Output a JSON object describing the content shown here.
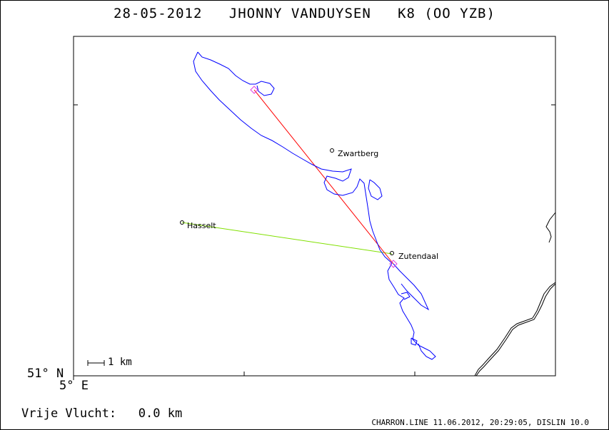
{
  "header": {
    "date": "28-05-2012",
    "pilot": "JHONNY VANDUYSEN",
    "glider": "K8 (OO YZB)"
  },
  "map": {
    "lat_label": "51° N",
    "lon_label": "5° E",
    "scale_label": "1 km",
    "places": [
      {
        "name": "Zwartberg"
      },
      {
        "name": "Hasselt"
      },
      {
        "name": "Zutendaal"
      }
    ],
    "colors": {
      "track": "#0000ff",
      "declared_line": "#ff0000",
      "free_flight_line": "#80e000",
      "turnpoint_marker": "#e040e0",
      "border": "#000000"
    }
  },
  "footer": {
    "distance_label": "Vrije Vlucht:",
    "distance_value": "0.0 km",
    "credit": "CHARRON.LINE 11.06.2012, 20:29:05, DISLIN 10.0"
  }
}
